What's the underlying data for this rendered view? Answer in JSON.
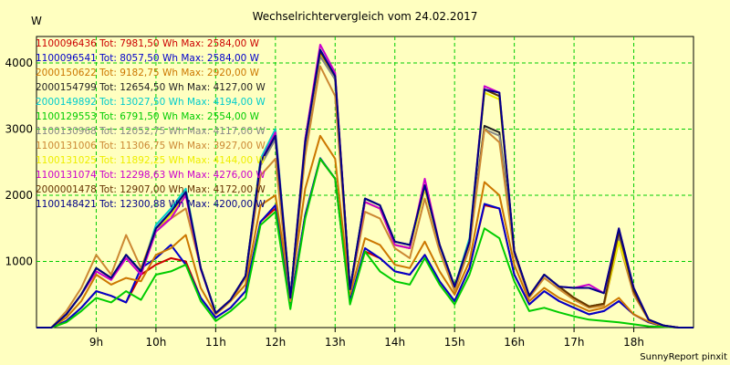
{
  "chart_data": {
    "type": "line",
    "title": "Wechselrichtervergleich vom 24.02.2017",
    "ylabel": "W",
    "footer": "SunnyReport pinxit",
    "ylim": [
      0,
      4400
    ],
    "xlim": [
      8.0,
      19.0
    ],
    "yticks": [
      1000,
      2000,
      3000,
      4000
    ],
    "xticks": [
      {
        "x": 9,
        "label": "9h"
      },
      {
        "x": 10,
        "label": "10h"
      },
      {
        "x": 11,
        "label": "11h"
      },
      {
        "x": 12,
        "label": "12h"
      },
      {
        "x": 13,
        "label": "13h"
      },
      {
        "x": 14,
        "label": "14h"
      },
      {
        "x": 15,
        "label": "15h"
      },
      {
        "x": 16,
        "label": "16h"
      },
      {
        "x": 17,
        "label": "17h"
      },
      {
        "x": 18,
        "label": "18h"
      }
    ],
    "grid": true,
    "legend_position": "top-left",
    "x": [
      8.0,
      8.25,
      8.5,
      8.75,
      9.0,
      9.25,
      9.5,
      9.75,
      10.0,
      10.25,
      10.5,
      10.75,
      11.0,
      11.25,
      11.5,
      11.75,
      12.0,
      12.25,
      12.5,
      12.75,
      13.0,
      13.25,
      13.5,
      13.75,
      14.0,
      14.25,
      14.5,
      14.75,
      15.0,
      15.25,
      15.5,
      15.75,
      16.0,
      16.25,
      16.5,
      16.75,
      17.0,
      17.25,
      17.5,
      17.75,
      18.0,
      18.25,
      18.5,
      18.75,
      19.0
    ],
    "series": [
      {
        "name": "1100096436 Tot: 7981,50 Wh Max: 2584,00 W",
        "color": "#cc0000",
        "values": [
          0,
          0,
          100,
          300,
          550,
          480,
          380,
          800,
          950,
          1050,
          1000,
          450,
          150,
          300,
          550,
          1600,
          1800,
          350,
          1700,
          2550,
          2250,
          400,
          1150,
          1050,
          850,
          800,
          1100,
          700,
          400,
          900,
          1850,
          1800,
          800,
          350,
          550,
          400,
          300,
          200,
          250,
          400,
          200,
          80,
          20,
          0,
          0
        ]
      },
      {
        "name": "1100096541 Tot: 8057,50 Wh Max: 2584,00 W",
        "color": "#0000cc",
        "values": [
          0,
          0,
          100,
          300,
          550,
          480,
          380,
          900,
          1050,
          1250,
          950,
          450,
          150,
          300,
          550,
          1600,
          1850,
          350,
          1700,
          2560,
          2250,
          400,
          1200,
          1050,
          850,
          800,
          1100,
          700,
          400,
          900,
          1870,
          1800,
          800,
          350,
          550,
          400,
          300,
          200,
          250,
          400,
          200,
          80,
          20,
          0,
          0
        ]
      },
      {
        "name": "2000150622 Tot: 9182,75 Wh Max: 2920,00 W",
        "color": "#cc7700",
        "values": [
          0,
          0,
          150,
          400,
          800,
          650,
          750,
          700,
          1100,
          1200,
          1400,
          600,
          200,
          400,
          650,
          1850,
          2000,
          500,
          2100,
          2900,
          2550,
          500,
          1350,
          1250,
          950,
          900,
          1300,
          850,
          500,
          1000,
          2200,
          2000,
          950,
          400,
          600,
          450,
          350,
          250,
          300,
          450,
          200,
          90,
          20,
          0,
          0
        ]
      },
      {
        "name": "2000154799 Tot: 12654,50 Wh Max: 4127,00 W",
        "color": "#222222",
        "values": [
          0,
          0,
          200,
          500,
          900,
          750,
          1100,
          850,
          1500,
          1700,
          2050,
          900,
          220,
          420,
          780,
          2450,
          2850,
          450,
          2750,
          4150,
          3750,
          580,
          1900,
          1800,
          1250,
          1200,
          2100,
          1250,
          620,
          1300,
          3050,
          2950,
          1150,
          480,
          800,
          620,
          450,
          320,
          360,
          1380,
          550,
          120,
          30,
          0,
          0
        ]
      },
      {
        "name": "2000149892 Tot: 13027,50 Wh Max: 4194,00 W",
        "color": "#00cccc",
        "values": [
          0,
          0,
          200,
          500,
          900,
          750,
          1100,
          850,
          1550,
          1800,
          2100,
          900,
          220,
          420,
          780,
          2550,
          3000,
          450,
          2850,
          4200,
          3800,
          580,
          1950,
          1850,
          1300,
          1250,
          2150,
          1250,
          620,
          1350,
          3600,
          3500,
          1150,
          480,
          800,
          620,
          450,
          320,
          360,
          1400,
          550,
          120,
          30,
          0,
          0
        ]
      },
      {
        "name": "1100129553 Tot: 6791,50 Wh Max: 2554,00 W",
        "color": "#00cc00",
        "values": [
          0,
          0,
          80,
          250,
          450,
          380,
          550,
          420,
          800,
          850,
          950,
          400,
          100,
          250,
          450,
          1550,
          1750,
          280,
          1650,
          2550,
          2250,
          350,
          1150,
          850,
          700,
          650,
          1050,
          650,
          350,
          800,
          1500,
          1350,
          700,
          250,
          300,
          230,
          170,
          120,
          100,
          80,
          50,
          20,
          10,
          0,
          0
        ]
      },
      {
        "name": "1100130968 Tot: 12052,75 Wh Max: 4117,00 W",
        "color": "#888888",
        "values": [
          0,
          0,
          200,
          500,
          900,
          750,
          1100,
          850,
          1500,
          1700,
          2050,
          900,
          220,
          420,
          780,
          2450,
          2850,
          450,
          2750,
          4100,
          3750,
          580,
          1900,
          1800,
          1250,
          1200,
          2100,
          1250,
          620,
          1300,
          3000,
          2900,
          1150,
          480,
          800,
          620,
          450,
          320,
          360,
          1380,
          550,
          120,
          30,
          0,
          0
        ]
      },
      {
        "name": "1100131006 Tot: 11306,75 Wh Max: 3927,00 W",
        "color": "#cc8833",
        "values": [
          0,
          0,
          250,
          600,
          1100,
          800,
          1400,
          900,
          1500,
          1650,
          1800,
          900,
          200,
          400,
          750,
          2300,
          2550,
          400,
          2600,
          3950,
          3500,
          550,
          1750,
          1650,
          1200,
          1050,
          1950,
          1150,
          550,
          1200,
          3000,
          2800,
          1100,
          450,
          750,
          580,
          420,
          300,
          330,
          1300,
          500,
          110,
          25,
          0,
          0
        ]
      },
      {
        "name": "1100131025 Tot: 11892,25 Wh Max: 4144,00 W",
        "color": "#eeee00",
        "values": [
          0,
          0,
          200,
          500,
          900,
          750,
          1100,
          850,
          1500,
          1700,
          2050,
          900,
          220,
          420,
          780,
          2500,
          2900,
          450,
          2800,
          4150,
          3800,
          580,
          1900,
          1800,
          1250,
          1200,
          2100,
          1250,
          620,
          1300,
          3550,
          3450,
          1150,
          480,
          800,
          620,
          450,
          320,
          360,
          1300,
          600,
          120,
          30,
          0,
          0
        ]
      },
      {
        "name": "1100131074 Tot: 12298,63 Wh Max: 4276,00 W",
        "color": "#cc00cc",
        "values": [
          0,
          0,
          200,
          500,
          850,
          720,
          1050,
          800,
          1450,
          1650,
          2000,
          880,
          220,
          420,
          780,
          2500,
          2950,
          450,
          2850,
          4276,
          3850,
          580,
          1900,
          1800,
          1250,
          1200,
          2250,
          1250,
          620,
          1300,
          3650,
          3550,
          1150,
          480,
          800,
          620,
          600,
          650,
          520,
          1500,
          600,
          120,
          30,
          0,
          0
        ]
      },
      {
        "name": "2000001478 Tot: 12907,00 Wh Max: 4172,00 W",
        "color": "#663300",
        "values": [
          0,
          0,
          200,
          500,
          900,
          750,
          1100,
          850,
          1500,
          1750,
          2050,
          900,
          220,
          420,
          780,
          2500,
          2900,
          450,
          2800,
          4172,
          3800,
          580,
          1950,
          1850,
          1300,
          1250,
          2150,
          1250,
          620,
          1300,
          3600,
          3500,
          1150,
          480,
          800,
          620,
          450,
          320,
          360,
          1450,
          550,
          120,
          30,
          0,
          0
        ]
      },
      {
        "name": "1100148421 Tot: 12300,88 Wh Max: 4200,00 W",
        "color": "#000088",
        "values": [
          0,
          0,
          200,
          500,
          900,
          750,
          1100,
          850,
          1500,
          1750,
          2050,
          900,
          220,
          420,
          780,
          2500,
          2900,
          450,
          2800,
          4200,
          3800,
          580,
          1950,
          1850,
          1300,
          1250,
          2150,
          1250,
          620,
          1300,
          3600,
          3550,
          1150,
          480,
          800,
          620,
          600,
          600,
          520,
          1500,
          600,
          120,
          30,
          0,
          0
        ]
      }
    ]
  }
}
